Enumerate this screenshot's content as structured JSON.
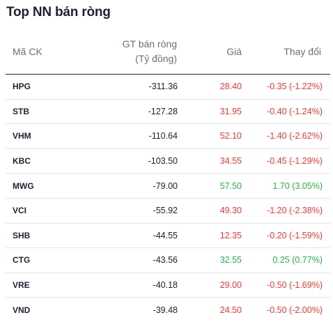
{
  "title": "Top NN bán ròng",
  "colors": {
    "down": "#e53935",
    "up": "#2eaa47"
  },
  "table": {
    "headers": {
      "code": "Mã CK",
      "value_line1": "GT bán ròng",
      "value_line2": "(Tỷ đồng)",
      "price": "Giá",
      "change": "Thay đổi"
    },
    "rows": [
      {
        "code": "HPG",
        "value": "-311.36",
        "price": "28.40",
        "change": "-0.35 (-1.22%)",
        "trend": "down"
      },
      {
        "code": "STB",
        "value": "-127.28",
        "price": "31.95",
        "change": "-0.40 (-1.24%)",
        "trend": "down"
      },
      {
        "code": "VHM",
        "value": "-110.64",
        "price": "52.10",
        "change": "-1.40 (-2.62%)",
        "trend": "down"
      },
      {
        "code": "KBC",
        "value": "-103.50",
        "price": "34.55",
        "change": "-0.45 (-1.29%)",
        "trend": "down"
      },
      {
        "code": "MWG",
        "value": "-79.00",
        "price": "57.50",
        "change": "1.70 (3.05%)",
        "trend": "up"
      },
      {
        "code": "VCI",
        "value": "-55.92",
        "price": "49.30",
        "change": "-1.20 (-2.38%)",
        "trend": "down"
      },
      {
        "code": "SHB",
        "value": "-44.55",
        "price": "12.35",
        "change": "-0.20 (-1.59%)",
        "trend": "down"
      },
      {
        "code": "CTG",
        "value": "-43.56",
        "price": "32.55",
        "change": "0.25 (0.77%)",
        "trend": "up"
      },
      {
        "code": "VRE",
        "value": "-40.18",
        "price": "29.00",
        "change": "-0.50 (-1.69%)",
        "trend": "down"
      },
      {
        "code": "VND",
        "value": "-39.48",
        "price": "24.50",
        "change": "-0.50 (-2.00%)",
        "trend": "down"
      }
    ]
  }
}
